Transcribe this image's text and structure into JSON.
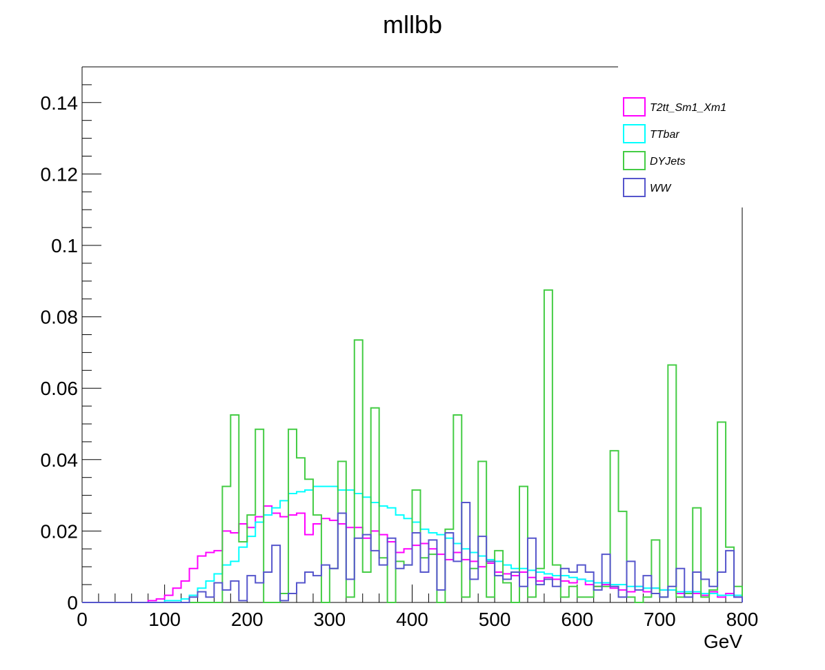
{
  "chart_data": {
    "type": "histogram",
    "title": "mllbb",
    "xlabel": "GeV",
    "ylabel": "",
    "xlim": [
      0,
      800
    ],
    "ylim": [
      0,
      0.15
    ],
    "bin_width": 10,
    "x_tick_labels": [
      "0",
      "100",
      "200",
      "300",
      "400",
      "500",
      "600",
      "700",
      "800"
    ],
    "y_tick_labels": [
      "0",
      "0.02",
      "0.04",
      "0.06",
      "0.08",
      "0.1",
      "0.12",
      "0.14"
    ],
    "grid": false,
    "legend_position": "top-right",
    "series": [
      {
        "name": "T2tt_Sm1_Xm1",
        "color": "#ff00ff",
        "values": [
          0,
          0,
          0,
          0,
          0,
          0,
          0,
          0,
          0.0005,
          0.001,
          0.002,
          0.004,
          0.006,
          0.0095,
          0.013,
          0.014,
          0.0145,
          0.02,
          0.0195,
          0.022,
          0.021,
          0.024,
          0.027,
          0.025,
          0.024,
          0.0245,
          0.025,
          0.019,
          0.022,
          0.0235,
          0.023,
          0.022,
          0.021,
          0.021,
          0.018,
          0.02,
          0.019,
          0.017,
          0.014,
          0.015,
          0.016,
          0.0165,
          0.015,
          0.0135,
          0.012,
          0.014,
          0.012,
          0.0115,
          0.01,
          0.011,
          0.0085,
          0.008,
          0.0075,
          0.0085,
          0.007,
          0.006,
          0.007,
          0.0065,
          0.006,
          0.0055,
          0.0065,
          0.005,
          0.0045,
          0.005,
          0.004,
          0.0035,
          0.003,
          0.0045,
          0.003,
          0.004,
          0.0035,
          0.0035,
          0.0025,
          0.003,
          0.0025,
          0.002,
          0.003,
          0.0015,
          0.0025,
          0.0015
        ]
      },
      {
        "name": "TTbar",
        "color": "#00ffff",
        "values": [
          0,
          0,
          0,
          0,
          0,
          0,
          0,
          0,
          0,
          0,
          0.0005,
          0.0005,
          0.001,
          0.002,
          0.004,
          0.006,
          0.008,
          0.0105,
          0.0115,
          0.0155,
          0.0185,
          0.0225,
          0.0245,
          0.0265,
          0.0285,
          0.0305,
          0.031,
          0.0315,
          0.0325,
          0.0325,
          0.0325,
          0.0315,
          0.0315,
          0.0305,
          0.0295,
          0.028,
          0.027,
          0.0265,
          0.0245,
          0.0235,
          0.0225,
          0.0205,
          0.0195,
          0.019,
          0.018,
          0.0165,
          0.015,
          0.014,
          0.013,
          0.012,
          0.0115,
          0.0105,
          0.0095,
          0.0095,
          0.009,
          0.0085,
          0.008,
          0.0075,
          0.0075,
          0.007,
          0.0065,
          0.006,
          0.0055,
          0.0055,
          0.005,
          0.005,
          0.0045,
          0.0045,
          0.004,
          0.004,
          0.0035,
          0.0035,
          0.003,
          0.003,
          0.003,
          0.0025,
          0.0025,
          0.002,
          0.002,
          0.002
        ]
      },
      {
        "name": "DYJets",
        "color": "#44cc44",
        "values": [
          0,
          0,
          0,
          0,
          0,
          0,
          0,
          0,
          0,
          0,
          0,
          0,
          0,
          0,
          0,
          0,
          0,
          0.0325,
          0.0525,
          0.017,
          0.0245,
          0.0485,
          0,
          0,
          0.0025,
          0.0485,
          0.0405,
          0.0345,
          0.0245,
          0,
          0.0095,
          0.0395,
          0.0015,
          0.0735,
          0.0085,
          0.0545,
          0.0125,
          0,
          0.0115,
          0.0105,
          0.0315,
          0.0125,
          0.0135,
          0,
          0.0205,
          0.0525,
          0.0015,
          0.0095,
          0.0395,
          0.0015,
          0.0145,
          0.0055,
          0,
          0.0325,
          0.0015,
          0.0095,
          0.0875,
          0.0105,
          0.0015,
          0.0045,
          0.0015,
          0.0015,
          0.0045,
          0.0045,
          0.0425,
          0.0255,
          0.0015,
          0,
          0.0015,
          0.0175,
          0.0015,
          0.0665,
          0.0015,
          0.0025,
          0.0265,
          0.0015,
          0.0035,
          0.0505,
          0.0155,
          0.0045
        ]
      },
      {
        "name": "WW",
        "color": "#5555cc",
        "values": [
          0,
          0,
          0,
          0,
          0,
          0,
          0,
          0,
          0,
          0,
          0,
          0,
          0,
          0.0015,
          0.003,
          0.0015,
          0.0055,
          0.0035,
          0.006,
          0.0005,
          0.0075,
          0.0055,
          0.0085,
          0.016,
          0.0005,
          0.0025,
          0.0055,
          0.0085,
          0.0075,
          0.0105,
          0.0095,
          0.025,
          0.0065,
          0.018,
          0.019,
          0.0145,
          0.0105,
          0.018,
          0.0095,
          0.0105,
          0.0195,
          0.0085,
          0.0175,
          0.0035,
          0.0195,
          0.0115,
          0.028,
          0.0065,
          0.0185,
          0.0115,
          0.0075,
          0.0065,
          0.0085,
          0.0045,
          0.018,
          0.005,
          0.0065,
          0.0045,
          0.0095,
          0.0085,
          0.0105,
          0.0085,
          0.0035,
          0.0135,
          0.0045,
          0.0015,
          0.0115,
          0.0035,
          0.0075,
          0.0025,
          0.0015,
          0.0045,
          0.0095,
          0.0015,
          0.0085,
          0.0065,
          0.0045,
          0.0085,
          0.0145,
          0.0015
        ]
      }
    ]
  }
}
